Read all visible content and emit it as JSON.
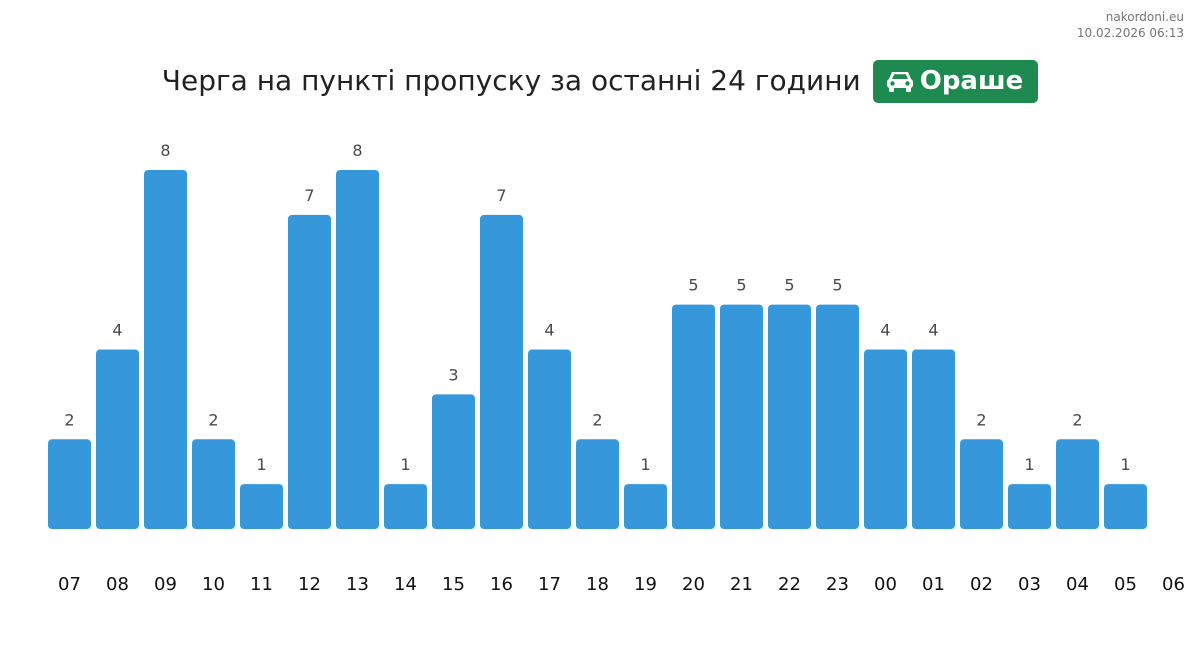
{
  "site": {
    "name": "nakordoni.eu",
    "timestamp": "10.02.2026 06:13"
  },
  "header": {
    "title": "Черга на пункті пропуску за останні 24 години",
    "badge_label": "Ораше",
    "badge_icon": "car-icon",
    "badge_color": "#1e8a4f"
  },
  "colors": {
    "bar": "#3698db"
  },
  "chart_data": {
    "type": "bar",
    "title": "Черга на пункті пропуску за останні 24 години",
    "xlabel": "",
    "ylabel": "",
    "categories": [
      "07",
      "08",
      "09",
      "10",
      "11",
      "12",
      "13",
      "14",
      "15",
      "16",
      "17",
      "18",
      "19",
      "20",
      "21",
      "22",
      "23",
      "00",
      "01",
      "02",
      "03",
      "04",
      "05",
      "06"
    ],
    "values": [
      2,
      4,
      8,
      2,
      1,
      7,
      8,
      1,
      3,
      7,
      4,
      2,
      1,
      5,
      5,
      5,
      5,
      4,
      4,
      2,
      1,
      2,
      1,
      null
    ],
    "ylim": [
      0,
      8
    ],
    "grid": false,
    "legend": "none"
  }
}
